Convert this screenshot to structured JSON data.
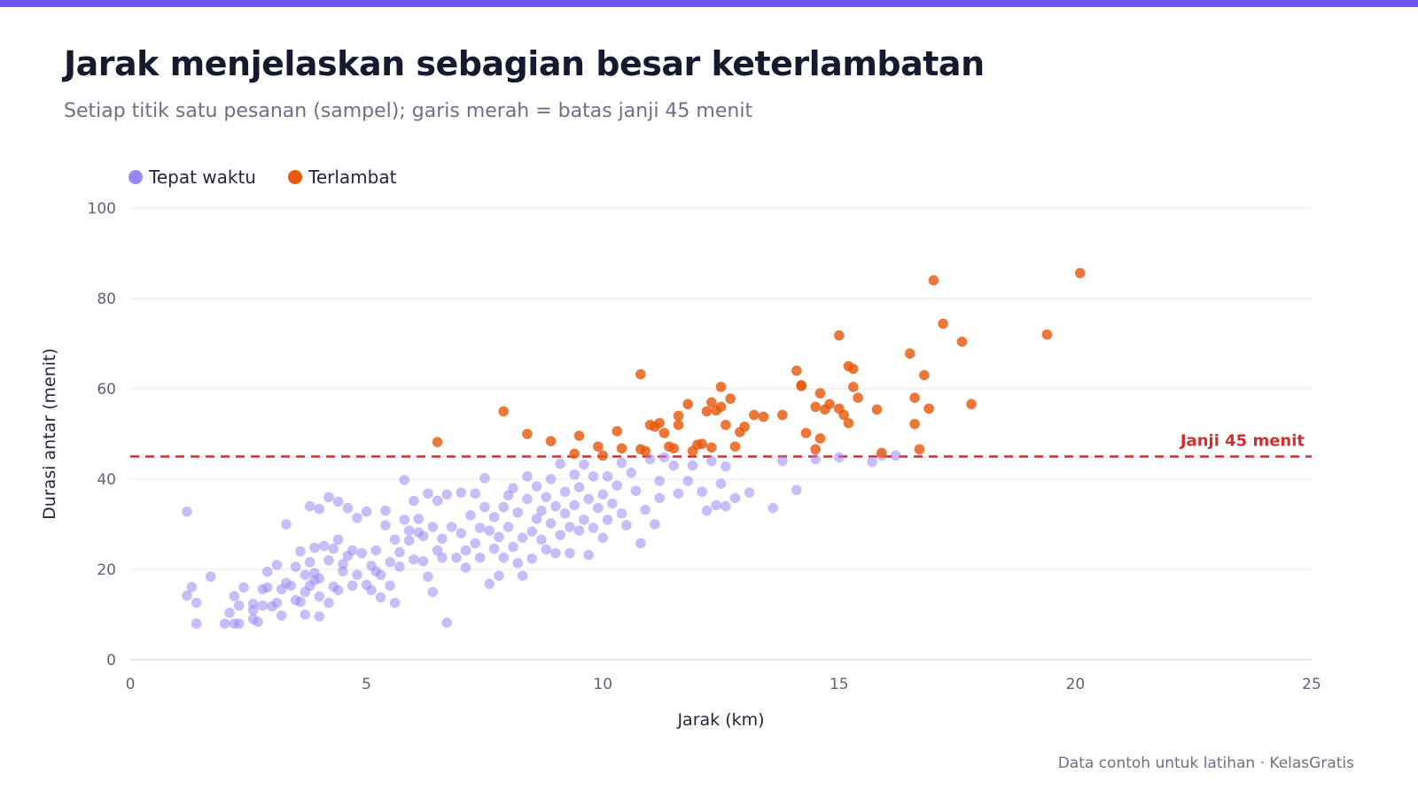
{
  "header": {
    "title": "Jarak menjelaskan sebagian besar keterlambatan",
    "subtitle": "Setiap titik satu pesanan (sampel); garis merah = batas janji 45 menit"
  },
  "footer": {
    "text": "Data contoh untuk latihan · KelasGratis"
  },
  "colors": {
    "accent_bar": "#6d55f5",
    "on_time": "#9a86f3",
    "late": "#e8590c",
    "reference_line": "#d32d2d",
    "grid": "#e9eaee"
  },
  "chart_data": {
    "type": "scatter",
    "xlabel": "Jarak (km)",
    "ylabel": "Durasi antar (menit)",
    "xlim": [
      0,
      25
    ],
    "ylim": [
      0,
      100
    ],
    "x_ticks": [
      0,
      5,
      10,
      15,
      20,
      25
    ],
    "y_ticks": [
      0,
      20,
      40,
      60,
      80,
      100
    ],
    "grid": "horizontal",
    "legend_position": "top-left",
    "reference_line": {
      "y": 45,
      "label": "Janji 45 menit"
    },
    "series": [
      {
        "name": "Tepat waktu",
        "points": [
          [
            1.2,
            32.8
          ],
          [
            1.2,
            14.2
          ],
          [
            1.3,
            16.1
          ],
          [
            1.4,
            12.6
          ],
          [
            1.4,
            8.0
          ],
          [
            1.7,
            18.4
          ],
          [
            2.0,
            8.0
          ],
          [
            2.1,
            10.4
          ],
          [
            2.2,
            14.1
          ],
          [
            2.2,
            8.0
          ],
          [
            2.3,
            8.0
          ],
          [
            2.3,
            12.0
          ],
          [
            2.4,
            16.0
          ],
          [
            2.6,
            12.4
          ],
          [
            2.6,
            11.0
          ],
          [
            2.6,
            9.0
          ],
          [
            2.7,
            8.4
          ],
          [
            2.8,
            15.6
          ],
          [
            2.8,
            12.0
          ],
          [
            2.9,
            16.0
          ],
          [
            2.9,
            19.5
          ],
          [
            3.0,
            11.8
          ],
          [
            3.1,
            21.0
          ],
          [
            3.1,
            12.6
          ],
          [
            3.2,
            15.6
          ],
          [
            3.2,
            9.8
          ],
          [
            3.3,
            30.0
          ],
          [
            3.3,
            17.0
          ],
          [
            3.4,
            16.4
          ],
          [
            3.5,
            13.2
          ],
          [
            3.5,
            20.6
          ],
          [
            3.6,
            12.8
          ],
          [
            3.6,
            24.0
          ],
          [
            3.7,
            10.0
          ],
          [
            3.7,
            15.0
          ],
          [
            3.7,
            18.8
          ],
          [
            3.8,
            16.4
          ],
          [
            3.8,
            21.6
          ],
          [
            3.8,
            34.0
          ],
          [
            3.9,
            17.6
          ],
          [
            3.9,
            24.8
          ],
          [
            3.9,
            19.2
          ],
          [
            4.0,
            33.4
          ],
          [
            4.0,
            9.6
          ],
          [
            4.0,
            14.0
          ],
          [
            4.0,
            18.0
          ],
          [
            4.1,
            25.2
          ],
          [
            4.2,
            22.0
          ],
          [
            4.2,
            36.0
          ],
          [
            4.2,
            12.6
          ],
          [
            4.3,
            16.2
          ],
          [
            4.3,
            24.6
          ],
          [
            4.4,
            35.0
          ],
          [
            4.4,
            26.6
          ],
          [
            4.4,
            15.4
          ],
          [
            4.5,
            19.6
          ],
          [
            4.5,
            21.2
          ],
          [
            4.6,
            33.6
          ],
          [
            4.6,
            23.0
          ],
          [
            4.7,
            24.2
          ],
          [
            4.7,
            16.4
          ],
          [
            4.8,
            31.4
          ],
          [
            4.8,
            18.8
          ],
          [
            4.9,
            23.6
          ],
          [
            5.0,
            32.8
          ],
          [
            5.0,
            16.6
          ],
          [
            5.1,
            20.8
          ],
          [
            5.1,
            15.4
          ],
          [
            5.2,
            24.2
          ],
          [
            5.2,
            19.6
          ],
          [
            5.3,
            13.8
          ],
          [
            5.3,
            18.8
          ],
          [
            5.4,
            33.0
          ],
          [
            5.4,
            29.8
          ],
          [
            5.5,
            21.6
          ],
          [
            5.5,
            16.4
          ],
          [
            5.6,
            26.6
          ],
          [
            5.6,
            12.6
          ],
          [
            5.7,
            23.8
          ],
          [
            5.7,
            20.6
          ],
          [
            5.8,
            39.8
          ],
          [
            5.8,
            31.0
          ],
          [
            5.9,
            28.6
          ],
          [
            5.9,
            26.4
          ],
          [
            6.0,
            22.2
          ],
          [
            6.0,
            35.2
          ],
          [
            6.1,
            28.2
          ],
          [
            6.1,
            31.2
          ],
          [
            6.2,
            27.4
          ],
          [
            6.2,
            21.8
          ],
          [
            6.3,
            18.4
          ],
          [
            6.3,
            36.8
          ],
          [
            6.4,
            15.0
          ],
          [
            6.4,
            29.4
          ],
          [
            6.5,
            35.2
          ],
          [
            6.5,
            24.2
          ],
          [
            6.6,
            22.6
          ],
          [
            6.6,
            26.8
          ],
          [
            6.7,
            8.2
          ],
          [
            6.7,
            36.6
          ],
          [
            6.8,
            29.4
          ],
          [
            6.9,
            22.6
          ],
          [
            7.0,
            37.0
          ],
          [
            7.0,
            28.0
          ],
          [
            7.1,
            24.2
          ],
          [
            7.1,
            20.4
          ],
          [
            7.2,
            32.0
          ],
          [
            7.3,
            25.8
          ],
          [
            7.3,
            36.8
          ],
          [
            7.4,
            29.2
          ],
          [
            7.4,
            22.6
          ],
          [
            7.5,
            33.8
          ],
          [
            7.5,
            40.2
          ],
          [
            7.6,
            28.6
          ],
          [
            7.6,
            16.8
          ],
          [
            7.7,
            24.6
          ],
          [
            7.7,
            31.6
          ],
          [
            7.8,
            18.6
          ],
          [
            7.8,
            27.2
          ],
          [
            7.9,
            33.8
          ],
          [
            7.9,
            22.6
          ],
          [
            8.0,
            36.4
          ],
          [
            8.0,
            29.4
          ],
          [
            8.1,
            25.0
          ],
          [
            8.1,
            38.0
          ],
          [
            8.2,
            21.4
          ],
          [
            8.2,
            32.6
          ],
          [
            8.3,
            18.6
          ],
          [
            8.3,
            27.0
          ],
          [
            8.4,
            35.6
          ],
          [
            8.4,
            40.6
          ],
          [
            8.5,
            28.4
          ],
          [
            8.5,
            22.4
          ],
          [
            8.6,
            31.2
          ],
          [
            8.6,
            38.4
          ],
          [
            8.7,
            26.6
          ],
          [
            8.7,
            33.0
          ],
          [
            8.8,
            36.0
          ],
          [
            8.8,
            24.4
          ],
          [
            8.9,
            30.2
          ],
          [
            8.9,
            40.0
          ],
          [
            9.0,
            34.0
          ],
          [
            9.0,
            23.6
          ],
          [
            9.1,
            43.4
          ],
          [
            9.1,
            27.6
          ],
          [
            9.2,
            32.4
          ],
          [
            9.2,
            37.2
          ],
          [
            9.3,
            29.4
          ],
          [
            9.3,
            23.6
          ],
          [
            9.4,
            41.0
          ],
          [
            9.4,
            34.2
          ],
          [
            9.5,
            28.6
          ],
          [
            9.5,
            38.2
          ],
          [
            9.6,
            31.0
          ],
          [
            9.6,
            43.2
          ],
          [
            9.7,
            35.6
          ],
          [
            9.7,
            23.2
          ],
          [
            9.8,
            29.2
          ],
          [
            9.8,
            40.6
          ],
          [
            9.9,
            33.6
          ],
          [
            10.0,
            36.6
          ],
          [
            10.0,
            27.0
          ],
          [
            10.1,
            40.6
          ],
          [
            10.1,
            31.0
          ],
          [
            10.2,
            34.6
          ],
          [
            10.3,
            38.6
          ],
          [
            10.4,
            32.4
          ],
          [
            10.4,
            43.6
          ],
          [
            10.5,
            29.8
          ],
          [
            10.6,
            41.4
          ],
          [
            10.7,
            37.4
          ],
          [
            10.8,
            25.8
          ],
          [
            10.9,
            33.2
          ],
          [
            11.0,
            44.4
          ],
          [
            11.1,
            30.0
          ],
          [
            11.2,
            39.6
          ],
          [
            11.2,
            35.8
          ],
          [
            11.3,
            44.8
          ],
          [
            11.5,
            43.0
          ],
          [
            11.6,
            36.8
          ],
          [
            11.8,
            39.6
          ],
          [
            11.9,
            43.0
          ],
          [
            12.1,
            37.2
          ],
          [
            12.2,
            33.0
          ],
          [
            12.3,
            44.0
          ],
          [
            12.4,
            34.2
          ],
          [
            12.5,
            39.0
          ],
          [
            12.6,
            42.8
          ],
          [
            12.6,
            34.0
          ],
          [
            12.8,
            35.8
          ],
          [
            13.1,
            37.0
          ],
          [
            13.6,
            33.6
          ],
          [
            13.8,
            44.0
          ],
          [
            14.1,
            37.6
          ],
          [
            14.5,
            44.4
          ],
          [
            15.0,
            44.8
          ],
          [
            15.7,
            43.8
          ],
          [
            15.9,
            45.2
          ],
          [
            16.2,
            45.2
          ]
        ]
      },
      {
        "name": "Terlambat",
        "points": [
          [
            6.5,
            48.2
          ],
          [
            7.9,
            55.0
          ],
          [
            8.4,
            50.0
          ],
          [
            8.9,
            48.4
          ],
          [
            9.4,
            45.6
          ],
          [
            9.5,
            49.6
          ],
          [
            9.9,
            47.2
          ],
          [
            10.0,
            45.2
          ],
          [
            10.3,
            50.6
          ],
          [
            10.4,
            46.8
          ],
          [
            10.8,
            63.2
          ],
          [
            10.8,
            46.6
          ],
          [
            10.9,
            46.2
          ],
          [
            11.0,
            52.0
          ],
          [
            11.1,
            51.6
          ],
          [
            11.2,
            52.4
          ],
          [
            11.3,
            50.2
          ],
          [
            11.4,
            47.2
          ],
          [
            11.5,
            46.8
          ],
          [
            11.6,
            54.0
          ],
          [
            11.6,
            52.0
          ],
          [
            11.8,
            56.6
          ],
          [
            11.9,
            46.2
          ],
          [
            12.0,
            47.6
          ],
          [
            12.1,
            47.8
          ],
          [
            12.2,
            55.0
          ],
          [
            12.3,
            47.0
          ],
          [
            12.3,
            57.0
          ],
          [
            12.4,
            55.2
          ],
          [
            12.5,
            60.4
          ],
          [
            12.5,
            56.0
          ],
          [
            12.6,
            52.0
          ],
          [
            12.7,
            57.8
          ],
          [
            12.8,
            47.2
          ],
          [
            12.9,
            50.4
          ],
          [
            13.0,
            51.6
          ],
          [
            13.2,
            54.2
          ],
          [
            13.4,
            53.8
          ],
          [
            13.8,
            54.2
          ],
          [
            14.1,
            64.0
          ],
          [
            14.2,
            60.6
          ],
          [
            14.2,
            60.8
          ],
          [
            14.3,
            50.2
          ],
          [
            14.5,
            56.0
          ],
          [
            14.5,
            46.6
          ],
          [
            14.6,
            59.0
          ],
          [
            14.6,
            49.0
          ],
          [
            14.7,
            55.4
          ],
          [
            14.8,
            56.6
          ],
          [
            15.0,
            71.8
          ],
          [
            15.0,
            55.6
          ],
          [
            15.1,
            54.2
          ],
          [
            15.2,
            65.0
          ],
          [
            15.2,
            52.4
          ],
          [
            15.3,
            60.4
          ],
          [
            15.3,
            64.4
          ],
          [
            15.4,
            58.0
          ],
          [
            15.8,
            55.4
          ],
          [
            15.9,
            45.8
          ],
          [
            16.5,
            67.8
          ],
          [
            16.6,
            58.0
          ],
          [
            16.6,
            52.2
          ],
          [
            16.7,
            46.6
          ],
          [
            16.8,
            63.0
          ],
          [
            16.9,
            55.6
          ],
          [
            17.0,
            84.0
          ],
          [
            17.2,
            74.4
          ],
          [
            17.6,
            70.4
          ],
          [
            17.8,
            56.6
          ],
          [
            19.4,
            72.0
          ],
          [
            20.1,
            85.6
          ]
        ]
      }
    ]
  }
}
